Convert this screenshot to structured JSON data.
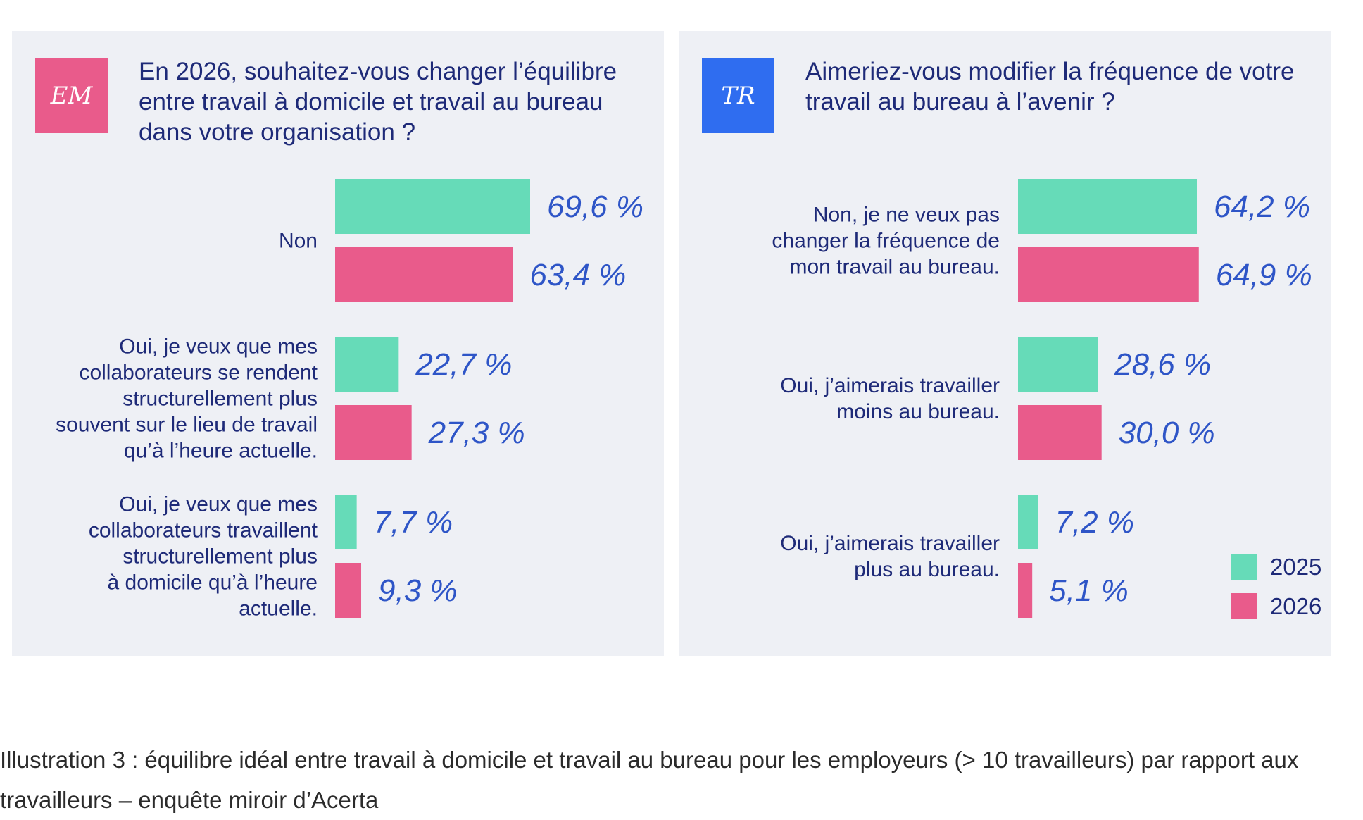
{
  "colors": {
    "series_2025": "#66dbb8",
    "series_2026": "#e95b8b",
    "value_text": "#2e55c7",
    "text_dark": "#1e2a78",
    "panel_bg": "#eef0f5",
    "badge_em": "#e95b8b",
    "badge_tr": "#2f6df0"
  },
  "chart_data": [
    {
      "type": "bar",
      "orientation": "horizontal",
      "badge": "EM",
      "title": "En 2026, souhaitez-vous changer l’équilibre entre travail à domicile et travail au bureau dans votre organisation ?",
      "categories": [
        [
          "Non"
        ],
        [
          "Oui, je veux que mes",
          "collaborateurs se rendent",
          "structurellement plus",
          "souvent sur le lieu de travail",
          "qu’à l’heure actuelle."
        ],
        [
          "Oui, je veux que mes",
          "collaborateurs travaillent",
          "structurellement plus",
          "à domicile qu’à l’heure",
          "actuelle."
        ]
      ],
      "series": [
        {
          "name": "2025",
          "values": [
            69.6,
            22.7,
            7.7
          ],
          "labels": [
            "69,6 %",
            "22,7 %",
            "7,7 %"
          ]
        },
        {
          "name": "2026",
          "values": [
            63.4,
            27.3,
            9.3
          ],
          "labels": [
            "63,4 %",
            "27,3 %",
            "9,3 %"
          ]
        }
      ],
      "xlim": [
        0,
        100
      ],
      "legend": null
    },
    {
      "type": "bar",
      "orientation": "horizontal",
      "badge": "TR",
      "title": "Aimeriez-vous modifier la fréquence de votre travail au bureau à l’avenir ?",
      "categories": [
        [
          "Non, je ne veux pas",
          "changer la fréquence de",
          "mon travail au bureau."
        ],
        [
          "Oui, j’aimerais travailler",
          "moins au bureau."
        ],
        [
          "Oui, j’aimerais travailler",
          "plus au bureau."
        ]
      ],
      "series": [
        {
          "name": "2025",
          "values": [
            64.2,
            28.6,
            7.2
          ],
          "labels": [
            "64,2 %",
            "28,6 %",
            "7,2 %"
          ]
        },
        {
          "name": "2026",
          "values": [
            64.9,
            30.0,
            5.1
          ],
          "labels": [
            "64,9 %",
            "30,0 %",
            "5,1 %"
          ]
        }
      ],
      "xlim": [
        0,
        100
      ],
      "legend": {
        "position": "bottom-right",
        "items": [
          "2025",
          "2026"
        ]
      }
    }
  ],
  "caption": "Illustration 3 : équilibre idéal entre travail à domicile et travail au bureau pour les employeurs (> 10 travailleurs) par rapport aux travailleurs – enquête miroir d’Acerta"
}
